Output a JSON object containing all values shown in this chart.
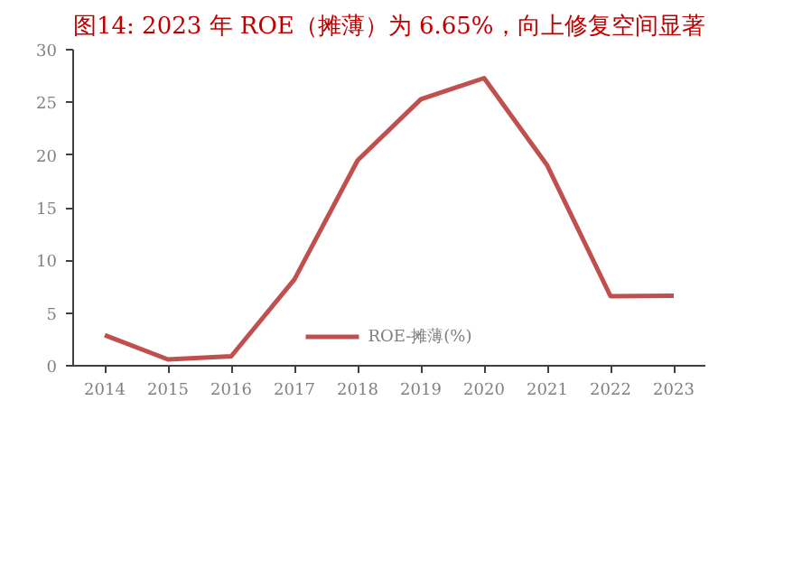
{
  "chart_data": {
    "type": "line",
    "title": "图14:   2023 年 ROE（摊薄）为 6.65%，向上修复空间显著",
    "categories": [
      "2014",
      "2015",
      "2016",
      "2017",
      "2018",
      "2019",
      "2020",
      "2021",
      "2022",
      "2023"
    ],
    "series": [
      {
        "name": "ROE-摊薄(%)",
        "color": "#c0504d",
        "values": [
          2.9,
          0.6,
          0.9,
          8.2,
          19.5,
          25.3,
          27.3,
          19.0,
          6.6,
          6.65
        ]
      }
    ],
    "ylim": [
      0,
      30
    ],
    "yticks": [
      0,
      5,
      10,
      15,
      20,
      25,
      30
    ],
    "grid": false,
    "legend": "bottom",
    "marker": "none",
    "line_style": "solid"
  }
}
